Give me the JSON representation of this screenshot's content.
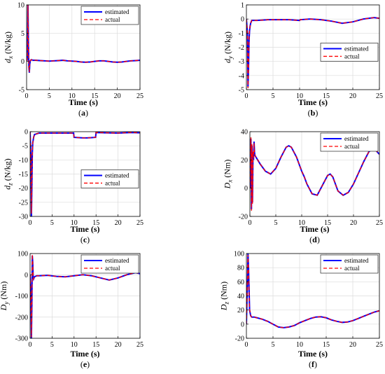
{
  "colors": {
    "estimated": "#0000ff",
    "actual": "#ff0000",
    "grid": "#dcdcdc",
    "axis": "#000000"
  },
  "chart_data": [
    {
      "type": "line",
      "caption": "(a)",
      "xlabel": "Time (s)",
      "ylabel": {
        "main": "d",
        "sub": "x",
        "unit": "(N/kg)"
      },
      "xlim": [
        0,
        25
      ],
      "ylim": [
        -5,
        10
      ],
      "xticks": [
        0,
        5,
        10,
        15,
        20,
        25
      ],
      "yticks": [
        -5,
        0,
        5,
        10
      ],
      "grid": true,
      "legend_position": "top-right",
      "series": [
        {
          "name": "estimated",
          "style": "solid",
          "x": [
            0,
            0.2,
            0.3,
            0.4,
            0.5,
            0.6,
            0.7,
            0.8,
            1,
            1.5,
            2,
            3,
            4,
            5,
            6,
            7,
            8,
            9,
            10,
            11,
            12,
            13,
            14,
            15,
            16,
            17,
            18,
            19,
            20,
            21,
            22,
            23,
            24,
            25
          ],
          "y": [
            0,
            0.5,
            10,
            3,
            -1,
            -2,
            -0.5,
            0.1,
            0.3,
            0.2,
            0.2,
            0.15,
            0.1,
            0.05,
            0.1,
            0.15,
            0.2,
            0.1,
            0.05,
            0.0,
            -0.1,
            -0.15,
            -0.1,
            0.0,
            0.1,
            0.1,
            0.0,
            -0.1,
            -0.15,
            -0.1,
            0.0,
            0.1,
            0.15,
            0.2
          ]
        },
        {
          "name": "actual",
          "style": "dashed",
          "x": [
            0,
            0.2,
            0.3,
            0.4,
            0.5,
            0.6,
            0.7,
            0.8,
            1,
            1.5,
            2,
            3,
            4,
            5,
            6,
            7,
            8,
            9,
            10,
            11,
            12,
            13,
            14,
            15,
            16,
            17,
            18,
            19,
            20,
            21,
            22,
            23,
            24,
            25
          ],
          "y": [
            0,
            0.6,
            10,
            3.2,
            -1.1,
            -1.9,
            -0.4,
            0.1,
            0.3,
            0.2,
            0.2,
            0.15,
            0.1,
            0.05,
            0.1,
            0.15,
            0.2,
            0.1,
            0.05,
            0.0,
            -0.1,
            -0.15,
            -0.1,
            0.0,
            0.1,
            0.1,
            0.0,
            -0.1,
            -0.15,
            -0.1,
            0.0,
            0.1,
            0.15,
            0.2
          ]
        }
      ]
    },
    {
      "type": "line",
      "caption": "(b)",
      "xlabel": "Time (s)",
      "ylabel": {
        "main": "d",
        "sub": "y",
        "unit": "(N/kg)"
      },
      "xlim": [
        0,
        25
      ],
      "ylim": [
        -5,
        1
      ],
      "xticks": [
        0,
        5,
        10,
        15,
        20,
        25
      ],
      "yticks": [
        -5,
        -4,
        -3,
        -2,
        -1,
        0,
        1
      ],
      "grid": true,
      "legend_position": "right",
      "series": [
        {
          "name": "estimated",
          "style": "solid",
          "x": [
            0,
            0.2,
            0.3,
            0.4,
            0.5,
            0.6,
            0.7,
            0.8,
            1,
            2,
            4,
            6,
            8,
            10,
            10.1,
            12,
            14,
            16,
            18,
            20,
            22,
            24,
            25
          ],
          "y": [
            0,
            -1,
            -4.8,
            -3.5,
            -1.5,
            -0.8,
            -0.5,
            -0.3,
            -0.1,
            -0.1,
            -0.05,
            -0.05,
            -0.05,
            -0.1,
            -0.05,
            0.0,
            -0.05,
            -0.15,
            -0.3,
            -0.2,
            0.0,
            0.1,
            0.05
          ]
        },
        {
          "name": "actual",
          "style": "dashed",
          "x": [
            0,
            0.2,
            0.3,
            0.4,
            0.5,
            0.6,
            0.7,
            0.8,
            1,
            2,
            4,
            6,
            8,
            10,
            10.1,
            12,
            14,
            16,
            18,
            20,
            22,
            24,
            25
          ],
          "y": [
            0,
            -1.1,
            -4.9,
            -3.4,
            -1.6,
            -0.7,
            -0.5,
            -0.3,
            -0.1,
            -0.1,
            -0.05,
            -0.05,
            -0.05,
            -0.1,
            -0.05,
            0.0,
            -0.05,
            -0.15,
            -0.3,
            -0.2,
            0.0,
            0.1,
            0.05
          ]
        }
      ]
    },
    {
      "type": "line",
      "caption": "(c)",
      "xlabel": "Time (s)",
      "ylabel": {
        "main": "d",
        "sub": "z",
        "unit": "(N/kg)"
      },
      "xlim": [
        0,
        25
      ],
      "ylim": [
        -30,
        0
      ],
      "xticks": [
        0,
        5,
        10,
        15,
        20,
        25
      ],
      "yticks": [
        -30,
        -25,
        -20,
        -15,
        -10,
        -5,
        0
      ],
      "grid": true,
      "legend_position": "right",
      "series": [
        {
          "name": "estimated",
          "style": "solid",
          "x": [
            0,
            0.2,
            0.3,
            0.4,
            0.5,
            0.6,
            0.7,
            0.8,
            1,
            2,
            5,
            9.9,
            10,
            11,
            12,
            13,
            14,
            14.9,
            15,
            17,
            20,
            23,
            25
          ],
          "y": [
            0,
            -10,
            -30,
            -20,
            -8,
            -4,
            -3,
            -2,
            -1,
            -0.5,
            -0.5,
            -0.5,
            -2.0,
            -2.1,
            -2.2,
            -2.2,
            -2.1,
            -2.0,
            -0.3,
            -0.4,
            -0.5,
            -0.3,
            -0.4
          ]
        },
        {
          "name": "actual",
          "style": "dashed",
          "x": [
            0,
            0.2,
            0.3,
            0.4,
            0.5,
            0.6,
            0.7,
            0.8,
            1,
            2,
            5,
            9.9,
            10,
            11,
            12,
            13,
            14,
            14.9,
            15,
            17,
            20,
            23,
            25
          ],
          "y": [
            0,
            -11,
            -29,
            -19,
            -8,
            -4,
            -3,
            -2,
            -1,
            -0.5,
            -0.5,
            -0.5,
            -2.0,
            -2.1,
            -2.2,
            -2.2,
            -2.1,
            -2.0,
            -0.3,
            -0.4,
            -0.5,
            -0.3,
            -0.4
          ]
        }
      ]
    },
    {
      "type": "line",
      "caption": "(d)",
      "xlabel": "Time (s)",
      "ylabel": {
        "main": "D",
        "sub": "x",
        "unit": "(Nm)"
      },
      "xlim": [
        0,
        25
      ],
      "ylim": [
        -20,
        40
      ],
      "xticks": [
        0,
        5,
        10,
        15,
        20,
        25
      ],
      "yticks": [
        -20,
        0,
        20,
        40
      ],
      "grid": true,
      "legend_position": "top-right",
      "series": [
        {
          "name": "estimated",
          "style": "solid",
          "x": [
            0,
            0.2,
            0.3,
            0.4,
            0.5,
            0.6,
            0.7,
            0.8,
            0.9,
            1,
            1.5,
            2,
            3,
            4,
            5,
            6,
            7,
            7.5,
            8,
            9,
            10,
            10.5,
            11,
            12,
            13,
            14,
            15,
            15.5,
            16,
            17,
            18,
            19,
            20,
            21,
            22,
            23,
            24,
            25
          ],
          "y": [
            0,
            35,
            -15,
            30,
            -10,
            25,
            20,
            33,
            25,
            23,
            20,
            17,
            12,
            10,
            14,
            22,
            29,
            30,
            29,
            22,
            12,
            8,
            3,
            -4,
            -5,
            2,
            9,
            10,
            8,
            -2,
            -5,
            -3,
            3,
            11,
            19,
            26,
            28,
            24
          ]
        },
        {
          "name": "actual",
          "style": "dashed",
          "x": [
            0,
            0.2,
            0.3,
            0.4,
            0.5,
            0.6,
            0.7,
            0.8,
            0.9,
            1,
            1.5,
            2,
            3,
            4,
            5,
            6,
            7,
            7.5,
            8,
            9,
            10,
            10.5,
            11,
            12,
            13,
            14,
            15,
            15.5,
            16,
            17,
            18,
            19,
            20,
            21,
            22,
            23,
            24,
            25
          ],
          "y": [
            0,
            36,
            -16,
            31,
            -11,
            26,
            21,
            32,
            25,
            23,
            20,
            17,
            12,
            10,
            14,
            22,
            29,
            30,
            29,
            22,
            12,
            8,
            3,
            -4,
            -5,
            2,
            9,
            10,
            8,
            -2,
            -5,
            -3,
            3,
            11,
            19,
            26,
            28,
            24
          ]
        }
      ]
    },
    {
      "type": "line",
      "caption": "(e)",
      "xlabel": "Time (s)",
      "ylabel": {
        "main": "D",
        "sub": "y",
        "unit": "(Nm)"
      },
      "xlim": [
        0,
        25
      ],
      "ylim": [
        -300,
        100
      ],
      "xticks": [
        0,
        5,
        10,
        15,
        20,
        25
      ],
      "yticks": [
        -300,
        -200,
        -100,
        0,
        100
      ],
      "grid": true,
      "legend_position": "top-right",
      "series": [
        {
          "name": "estimated",
          "style": "solid",
          "x": [
            0,
            0.2,
            0.3,
            0.4,
            0.5,
            0.6,
            0.7,
            0.8,
            1,
            1.5,
            2,
            4,
            6,
            8,
            10,
            12,
            14,
            16,
            18,
            20,
            22,
            24,
            25
          ],
          "y": [
            0,
            -100,
            -300,
            -150,
            90,
            60,
            -10,
            -20,
            -10,
            -5,
            -5,
            -3,
            -8,
            -10,
            -5,
            0,
            -5,
            -15,
            -25,
            -15,
            0,
            10,
            5
          ]
        },
        {
          "name": "actual",
          "style": "dashed",
          "x": [
            0,
            0.2,
            0.3,
            0.4,
            0.5,
            0.6,
            0.7,
            0.8,
            1,
            1.5,
            2,
            4,
            6,
            8,
            10,
            12,
            14,
            16,
            18,
            20,
            22,
            24,
            25
          ],
          "y": [
            0,
            -110,
            -295,
            -140,
            95,
            55,
            -10,
            -20,
            -10,
            -5,
            -5,
            -3,
            -8,
            -10,
            -5,
            0,
            -5,
            -15,
            -25,
            -15,
            0,
            10,
            5
          ]
        }
      ]
    },
    {
      "type": "line",
      "caption": "(f)",
      "xlabel": "Time (s)",
      "ylabel": {
        "main": "D",
        "sub": "z",
        "unit": "(Nm)"
      },
      "xlim": [
        0,
        25
      ],
      "ylim": [
        -20,
        100
      ],
      "xticks": [
        0,
        5,
        10,
        15,
        20,
        25
      ],
      "yticks": [
        -20,
        0,
        20,
        40,
        60,
        80,
        100
      ],
      "grid": true,
      "legend_position": "top-right",
      "series": [
        {
          "name": "estimated",
          "style": "solid",
          "x": [
            0,
            0.2,
            0.3,
            0.4,
            0.5,
            0.6,
            0.8,
            1,
            1.5,
            2,
            3,
            4,
            5,
            6,
            7,
            8,
            9,
            10,
            11,
            12,
            13,
            14,
            15,
            16,
            17,
            18,
            19,
            20,
            21,
            22,
            23,
            24,
            25
          ],
          "y": [
            0,
            60,
            100,
            80,
            50,
            20,
            12,
            10,
            10,
            9,
            7,
            4,
            0,
            -4,
            -5,
            -4,
            -2,
            2,
            5,
            8,
            10,
            10.5,
            9,
            6,
            4,
            2.5,
            3,
            5,
            8,
            11,
            14,
            17,
            19
          ]
        },
        {
          "name": "actual",
          "style": "dashed",
          "x": [
            0,
            0.2,
            0.3,
            0.4,
            0.5,
            0.6,
            0.8,
            1,
            1.5,
            2,
            3,
            4,
            5,
            6,
            7,
            8,
            9,
            10,
            11,
            12,
            13,
            14,
            15,
            16,
            17,
            18,
            19,
            20,
            21,
            22,
            23,
            24,
            25
          ],
          "y": [
            0,
            62,
            98,
            78,
            48,
            21,
            12,
            10,
            10,
            9,
            7,
            4,
            0,
            -4,
            -5,
            -4,
            -2,
            2,
            5,
            8,
            10,
            10.5,
            9,
            6,
            4,
            2.5,
            3,
            5,
            8,
            11,
            14,
            17,
            19
          ]
        }
      ]
    }
  ]
}
